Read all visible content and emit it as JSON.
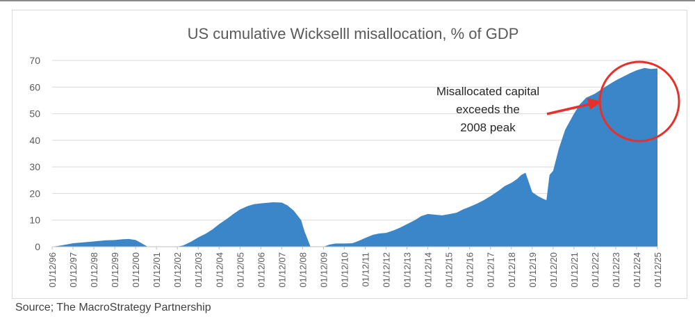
{
  "chart_data": {
    "type": "area",
    "title": "US cumulative Wickselll misallocation, % of GDP",
    "xlabel": "",
    "ylabel": "",
    "ylim": [
      0,
      70
    ],
    "yticks": [
      0,
      10,
      20,
      30,
      40,
      50,
      60,
      70
    ],
    "x_ticks": [
      "01/12/96",
      "01/12/97",
      "01/12/98",
      "01/12/99",
      "01/12/00",
      "01/12/01",
      "01/12/02",
      "01/12/03",
      "01/12/04",
      "01/12/05",
      "01/12/06",
      "01/12/07",
      "01/12/08",
      "01/12/09",
      "01/12/10",
      "01/12/11",
      "01/12/12",
      "01/12/13",
      "01/12/14",
      "01/12/15",
      "01/12/16",
      "01/12/17",
      "01/12/18",
      "01/12/19",
      "01/12/20",
      "01/12/21",
      "01/12/22",
      "01/12/23",
      "01/12/24",
      "01/12/25"
    ],
    "grid": true,
    "series_color": "#3a86c8",
    "x": [
      1996.92,
      1997.2,
      1997.5,
      1997.92,
      1998.5,
      1998.92,
      1999.5,
      1999.92,
      2000.3,
      2000.6,
      2000.92,
      2001.05,
      2001.5,
      2002.0,
      2002.5,
      2002.92,
      2003.2,
      2003.6,
      2003.92,
      2004.3,
      2004.6,
      2004.92,
      2005.3,
      2005.6,
      2005.92,
      2006.3,
      2006.6,
      2006.92,
      2007.2,
      2007.5,
      2007.92,
      2008.2,
      2008.5,
      2008.85,
      2009.0,
      2009.3,
      2009.6,
      2009.92,
      2010.2,
      2010.5,
      2010.92,
      2011.3,
      2011.6,
      2011.92,
      2012.3,
      2012.6,
      2012.92,
      2013.3,
      2013.6,
      2013.92,
      2014.3,
      2014.6,
      2014.92,
      2015.3,
      2015.6,
      2015.92,
      2016.3,
      2016.6,
      2016.92,
      2017.3,
      2017.6,
      2017.92,
      2018.3,
      2018.6,
      2018.92,
      2019.2,
      2019.4,
      2019.6,
      2019.92,
      2020.2,
      2020.45,
      2020.6,
      2020.75,
      2020.92,
      2021.2,
      2021.5,
      2021.92,
      2022.2,
      2022.5,
      2022.92,
      2023.3,
      2023.6,
      2023.92,
      2024.3,
      2024.6,
      2024.92,
      2025.3,
      2025.6,
      2025.92
    ],
    "values": [
      0,
      0.3,
      0.7,
      1.3,
      1.7,
      2.0,
      2.4,
      2.5,
      2.8,
      2.9,
      2.5,
      2.0,
      0,
      0,
      0,
      0,
      0.5,
      2.0,
      3.5,
      5.0,
      6.5,
      8.5,
      10.5,
      12.3,
      14.0,
      15.3,
      16.0,
      16.3,
      16.5,
      16.7,
      16.6,
      15.5,
      13.5,
      10.0,
      6.0,
      0,
      0,
      0,
      0.8,
      1.2,
      1.2,
      1.3,
      2.2,
      3.3,
      4.5,
      5.0,
      5.2,
      6.2,
      7.2,
      8.5,
      10.0,
      11.5,
      12.3,
      12.0,
      11.8,
      12.2,
      12.8,
      14.0,
      15.0,
      16.3,
      17.5,
      19.0,
      21.0,
      22.8,
      24.0,
      25.5,
      27.0,
      27.8,
      20.5,
      19.0,
      18.0,
      17.5,
      27.0,
      28.5,
      37.0,
      44.0,
      50.0,
      53.5,
      56.0,
      57.5,
      59.5,
      61.0,
      62.5,
      64.0,
      65.2,
      66.3,
      67.2,
      66.8,
      67.0
    ]
  },
  "annotation": {
    "lines": [
      "Misallocated capital",
      "exceeds the",
      "2008 peak"
    ],
    "color": "#e8302a"
  },
  "source": "Source; The MacroStrategy Partnership"
}
